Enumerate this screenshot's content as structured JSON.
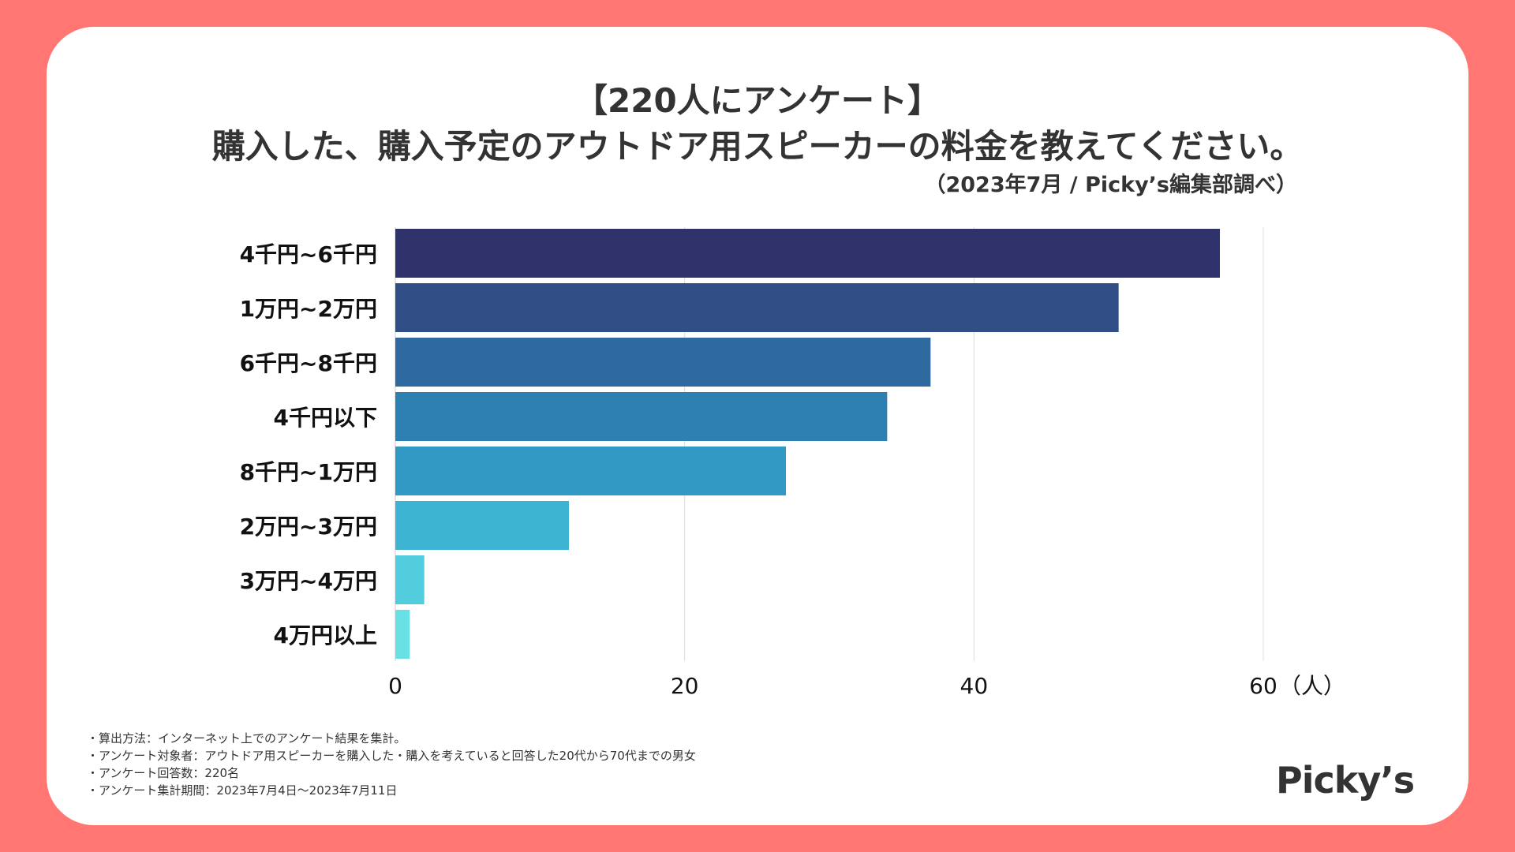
{
  "header": {
    "title_line1": "【220人にアンケート】",
    "title_line2": "購入した、購入予定のアウトドア用スピーカーの料金を教えてください。",
    "source": "（2023年7月 / Picky’s編集部調べ）"
  },
  "chart_data": {
    "type": "bar",
    "orientation": "horizontal",
    "categories": [
      "4千円~6千円",
      "1万円~2万円",
      "6千円~8千円",
      "4千円以下",
      "8千円~1万円",
      "2万円~3万円",
      "3万円~4万円",
      "4万円以上"
    ],
    "values": [
      57,
      50,
      37,
      34,
      27,
      12,
      2,
      1
    ],
    "colors": [
      "#30336b",
      "#314e87",
      "#2e6a9f",
      "#2d80b1",
      "#3199c4",
      "#3db4d2",
      "#51cddd",
      "#69e0e3"
    ],
    "xticks": [
      0,
      20,
      40,
      60
    ],
    "xlim": [
      0,
      60
    ],
    "xunit": "（人）",
    "grid": true
  },
  "notes": [
    "・算出方法：インターネット上でのアンケート結果を集計。",
    "・アンケート対象者：アウトドア用スピーカーを購入した・購入を考えていると回答した20代から70代までの男女",
    "・アンケート回答数：220名",
    "・アンケート集計期間：2023年7月4日〜2023年7月11日"
  ],
  "logo": "Picky’s"
}
